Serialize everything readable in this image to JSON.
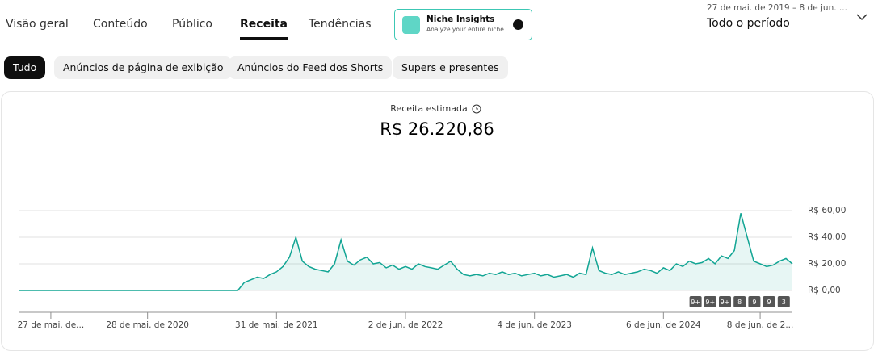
{
  "tabs": [
    "Visão geral",
    "Conteúdo",
    "Público",
    "Receita",
    "Tendências"
  ],
  "niche": {
    "title": "Niche Insights",
    "subtitle": "Analyze your entire niche"
  },
  "date": {
    "range": "27 de mai. de 2019 – 8 de jun. ...",
    "period": "Todo o período"
  },
  "chips": [
    "Tudo",
    "Anúncios de página de exibição",
    "Anúncios do Feed dos Shorts",
    "Supers e presentes"
  ],
  "chart_data": {
    "type": "line",
    "title": "Receita estimada",
    "subtitle": "R$ 26.220,86",
    "categories": [
      null,
      null,
      null,
      null,
      null,
      "27 de mai. de...",
      null,
      null,
      null,
      null,
      null,
      null,
      null,
      null,
      null,
      null,
      null,
      null,
      null,
      null,
      "28 de mai. de 2020",
      null,
      null,
      null,
      null,
      null,
      null,
      null,
      null,
      null,
      null,
      null,
      null,
      null,
      null,
      null,
      null,
      null,
      null,
      null,
      "31 de mai. de 2021",
      null,
      null,
      null,
      null,
      null,
      null,
      null,
      null,
      null,
      null,
      null,
      null,
      null,
      null,
      null,
      null,
      null,
      null,
      null,
      "2 de jun. de 2022",
      null,
      null,
      null,
      null,
      null,
      null,
      null,
      null,
      null,
      null,
      null,
      null,
      null,
      null,
      null,
      null,
      null,
      null,
      null,
      "4 de jun. de 2023",
      null,
      null,
      null,
      null,
      null,
      null,
      null,
      null,
      null,
      null,
      null,
      null,
      null,
      null,
      null,
      null,
      null,
      null,
      null,
      "6 de jun. de 2024",
      null,
      null,
      null,
      null,
      null,
      null,
      null,
      null,
      null,
      null,
      null,
      null,
      null,
      null,
      "8 de jun. de 2...",
      null,
      null,
      null,
      null,
      null
    ],
    "series": [
      {
        "color": "#12a594",
        "values": [
          0,
          0,
          0,
          0,
          0,
          0,
          0,
          0,
          0,
          0,
          0,
          0,
          0,
          0,
          0,
          0,
          0,
          0,
          0,
          0,
          0,
          0,
          0,
          0,
          0,
          0,
          0,
          0,
          0,
          0,
          0,
          0,
          0,
          0,
          0,
          6,
          8,
          10,
          9,
          12,
          14,
          18,
          25,
          40,
          22,
          18,
          16,
          15,
          14,
          20,
          38,
          22,
          19,
          23,
          25,
          20,
          21,
          17,
          19,
          16,
          18,
          16,
          20,
          18,
          17,
          16,
          19,
          22,
          16,
          12,
          11,
          12,
          11,
          13,
          12,
          14,
          12,
          13,
          11,
          12,
          13,
          11,
          12,
          10,
          11,
          12,
          10,
          13,
          12,
          32,
          15,
          13,
          12,
          14,
          12,
          13,
          14,
          16,
          15,
          13,
          17,
          15,
          20,
          18,
          22,
          20,
          21,
          24,
          20,
          26,
          24,
          30,
          58,
          40,
          22,
          20,
          18,
          19,
          22,
          24,
          20
        ]
      }
    ],
    "ylim": [
      0,
      60
    ],
    "yticks": [
      {
        "value": 0,
        "label": "R$ 0,00"
      },
      {
        "value": 20,
        "label": "R$ 20,00"
      },
      {
        "value": 40,
        "label": "R$ 40,00"
      },
      {
        "value": 60,
        "label": "R$ 60,00"
      }
    ],
    "grid": true,
    "annotations": [
      "9+",
      "9+",
      "9+",
      "8",
      "9",
      "9",
      "3"
    ]
  }
}
